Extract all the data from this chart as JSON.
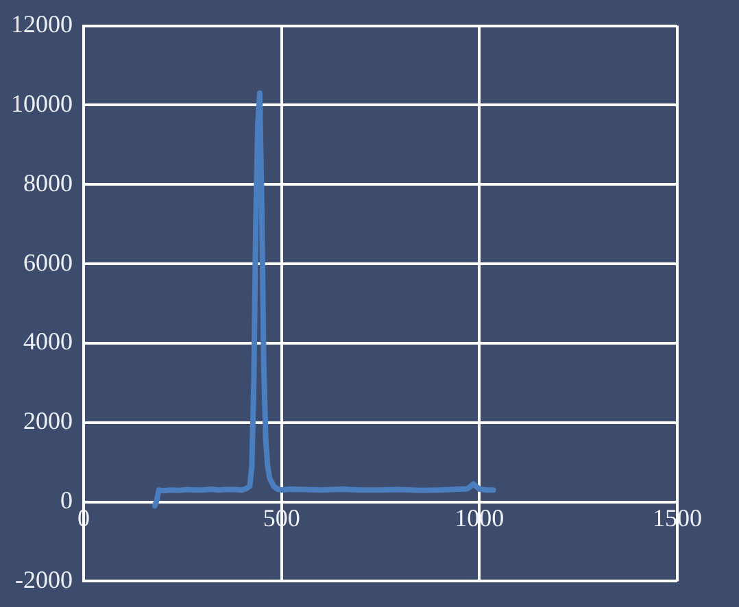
{
  "chart_data": {
    "type": "line",
    "x": [
      180,
      185,
      190,
      200,
      220,
      240,
      260,
      280,
      300,
      320,
      340,
      360,
      380,
      400,
      410,
      420,
      425,
      430,
      435,
      440,
      445,
      450,
      455,
      460,
      465,
      470,
      480,
      490,
      500,
      520,
      560,
      600,
      650,
      700,
      750,
      800,
      850,
      900,
      950,
      970,
      985,
      1000,
      1020,
      1035
    ],
    "series": [
      {
        "color": "#4a7ebf",
        "values": [
          -100,
          50,
          300,
          280,
          300,
          290,
          310,
          300,
          300,
          320,
          300,
          310,
          310,
          300,
          330,
          400,
          900,
          3000,
          7000,
          9500,
          10300,
          7500,
          3500,
          1600,
          900,
          600,
          400,
          320,
          300,
          320,
          310,
          300,
          320,
          300,
          300,
          310,
          290,
          300,
          320,
          330,
          450,
          320,
          300,
          300
        ]
      }
    ],
    "xlim": [
      0,
      1500
    ],
    "xticks": [
      0,
      500,
      1000,
      1500
    ],
    "ylim": [
      -2000,
      12000
    ],
    "yticks": [
      -2000,
      0,
      2000,
      4000,
      6000,
      8000,
      10000,
      12000
    ],
    "grid": true,
    "legend": false,
    "marker": "none",
    "line_style": "solid"
  }
}
